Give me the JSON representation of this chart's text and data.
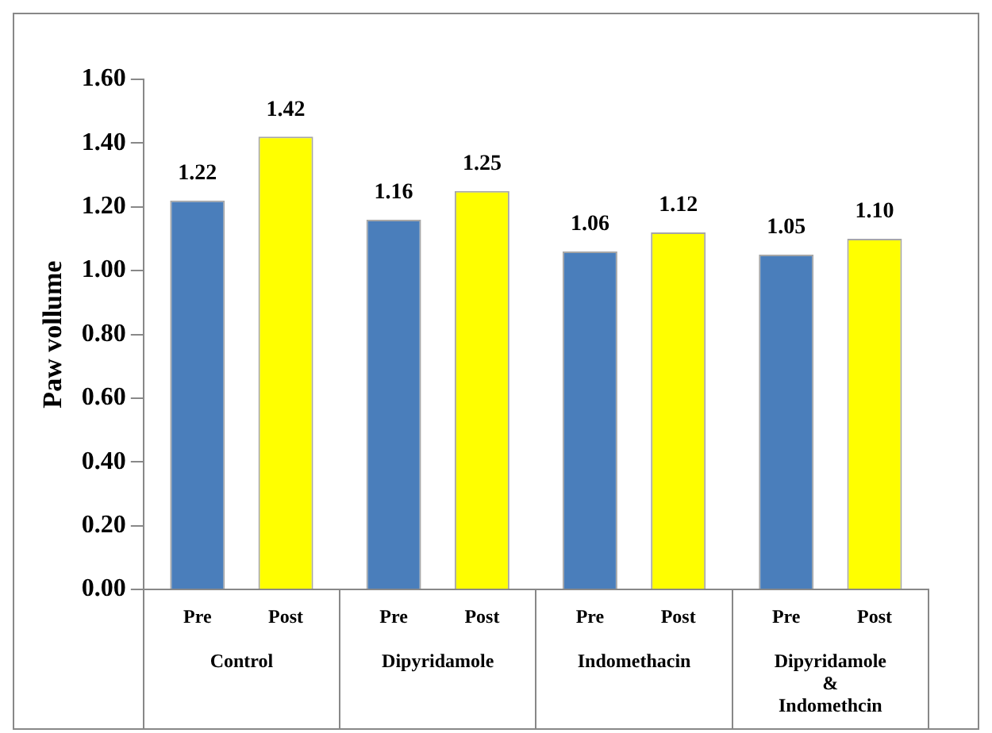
{
  "chart_data": {
    "type": "bar",
    "ylabel": "Paw vollume",
    "categories": [
      "Control",
      "Dipyridamole",
      "Indomethacin",
      "Dipyridamole & Indomethcin"
    ],
    "series": [
      {
        "name": "Pre",
        "color": "#4a7ebb",
        "values": [
          1.22,
          1.16,
          1.06,
          1.05
        ],
        "value_labels": [
          "1.22",
          "1.16",
          "1.06",
          "1.05"
        ]
      },
      {
        "name": "Post",
        "color": "#ffff00",
        "values": [
          1.42,
          1.25,
          1.12,
          1.1
        ],
        "value_labels": [
          "1.42",
          "1.25",
          "1.12",
          "1.10"
        ]
      }
    ],
    "ylim": [
      0,
      1.6
    ],
    "yticks": [
      {
        "value": 0,
        "label": "0.00"
      },
      {
        "value": 0.2,
        "label": "0.20"
      },
      {
        "value": 0.4,
        "label": "0.40"
      },
      {
        "value": 0.6,
        "label": "0.60"
      },
      {
        "value": 0.8,
        "label": "0.80"
      },
      {
        "value": 1,
        "label": "1.00"
      },
      {
        "value": 1.2,
        "label": "1.20"
      },
      {
        "value": 1.4,
        "label": "1.40"
      },
      {
        "value": 1.6,
        "label": "1.60"
      }
    ],
    "grid": false,
    "legend": false
  }
}
